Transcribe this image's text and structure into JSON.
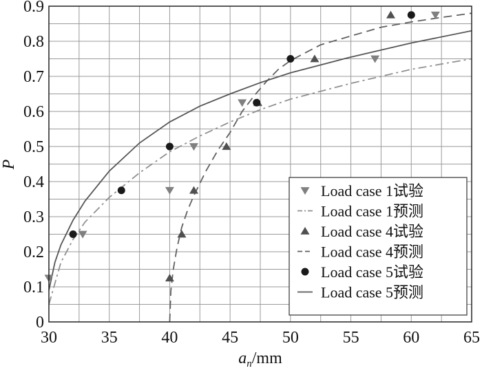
{
  "chart_data": {
    "type": "scatter",
    "title": "",
    "xlabel": "a",
    "xlabel_sub": "n",
    "xlabel_unit": "/mm",
    "ylabel": "P",
    "xlim": [
      30,
      65
    ],
    "ylim": [
      0,
      0.9
    ],
    "x_ticks": [
      30,
      35,
      40,
      45,
      50,
      55,
      60,
      65
    ],
    "y_ticks": [
      0,
      0.1,
      0.2,
      0.3,
      0.4,
      0.5,
      0.6,
      0.7,
      0.8,
      0.9
    ],
    "x_tick_labels": [
      "30",
      "35",
      "40",
      "45",
      "50",
      "55",
      "60",
      "65"
    ],
    "y_tick_labels": [
      "0",
      "0.1",
      "0.2",
      "0.3",
      "0.4",
      "0.5",
      "0.6",
      "0.7",
      "0.8",
      "0.9"
    ],
    "grid": true,
    "legend_position": "bottom-right",
    "series": [
      {
        "name": "Load case 1试验",
        "kind": "markers",
        "marker": "triangle-down",
        "color": "#808080",
        "points": [
          [
            30,
            0.125
          ],
          [
            32.8,
            0.25
          ],
          [
            40,
            0.375
          ],
          [
            42,
            0.5
          ],
          [
            46,
            0.625
          ],
          [
            57,
            0.75
          ],
          [
            62,
            0.875
          ]
        ]
      },
      {
        "name": "Load case 1预测",
        "kind": "line",
        "dash": "dashdot",
        "color": "#909090",
        "points": [
          [
            30,
            0.05
          ],
          [
            31,
            0.17
          ],
          [
            32,
            0.235
          ],
          [
            33,
            0.285
          ],
          [
            35,
            0.355
          ],
          [
            37.5,
            0.425
          ],
          [
            40,
            0.485
          ],
          [
            42.5,
            0.53
          ],
          [
            45,
            0.57
          ],
          [
            47.5,
            0.605
          ],
          [
            50,
            0.635
          ],
          [
            55,
            0.68
          ],
          [
            60,
            0.72
          ],
          [
            65,
            0.75
          ]
        ]
      },
      {
        "name": "Load case 4试验",
        "kind": "markers",
        "marker": "triangle-up",
        "color": "#505050",
        "points": [
          [
            40,
            0.125
          ],
          [
            41,
            0.25
          ],
          [
            42,
            0.375
          ],
          [
            44.7,
            0.5
          ],
          [
            47.3,
            0.625
          ],
          [
            52,
            0.75
          ],
          [
            58.3,
            0.875
          ]
        ]
      },
      {
        "name": "Load case 4预测",
        "kind": "line",
        "dash": "dashed",
        "color": "#606060",
        "points": [
          [
            40,
            0.0
          ],
          [
            40.1,
            0.09
          ],
          [
            40.3,
            0.15
          ],
          [
            40.6,
            0.21
          ],
          [
            41,
            0.27
          ],
          [
            41.5,
            0.32
          ],
          [
            42,
            0.36
          ],
          [
            43,
            0.43
          ],
          [
            44,
            0.49
          ],
          [
            45,
            0.54
          ],
          [
            46,
            0.6
          ],
          [
            47,
            0.645
          ],
          [
            48,
            0.685
          ],
          [
            49,
            0.72
          ],
          [
            50,
            0.745
          ],
          [
            52.5,
            0.79
          ],
          [
            55,
            0.815
          ],
          [
            57.5,
            0.84
          ],
          [
            60,
            0.855
          ],
          [
            62.5,
            0.868
          ],
          [
            65,
            0.88
          ]
        ]
      },
      {
        "name": "Load case 5试验",
        "kind": "markers",
        "marker": "circle",
        "color": "#1a1a1a",
        "points": [
          [
            32,
            0.25
          ],
          [
            36,
            0.375
          ],
          [
            40,
            0.5
          ],
          [
            47.2,
            0.625
          ],
          [
            50,
            0.75
          ],
          [
            60,
            0.875
          ]
        ]
      },
      {
        "name": "Load case 5预测",
        "kind": "line",
        "dash": "solid",
        "color": "#555555",
        "points": [
          [
            30,
            0.09
          ],
          [
            30.5,
            0.17
          ],
          [
            31,
            0.22
          ],
          [
            32,
            0.29
          ],
          [
            33,
            0.345
          ],
          [
            35,
            0.43
          ],
          [
            37.5,
            0.51
          ],
          [
            40,
            0.57
          ],
          [
            42.5,
            0.615
          ],
          [
            45,
            0.65
          ],
          [
            47.5,
            0.682
          ],
          [
            50,
            0.71
          ],
          [
            55,
            0.755
          ],
          [
            60,
            0.795
          ],
          [
            65,
            0.83
          ]
        ]
      }
    ]
  }
}
